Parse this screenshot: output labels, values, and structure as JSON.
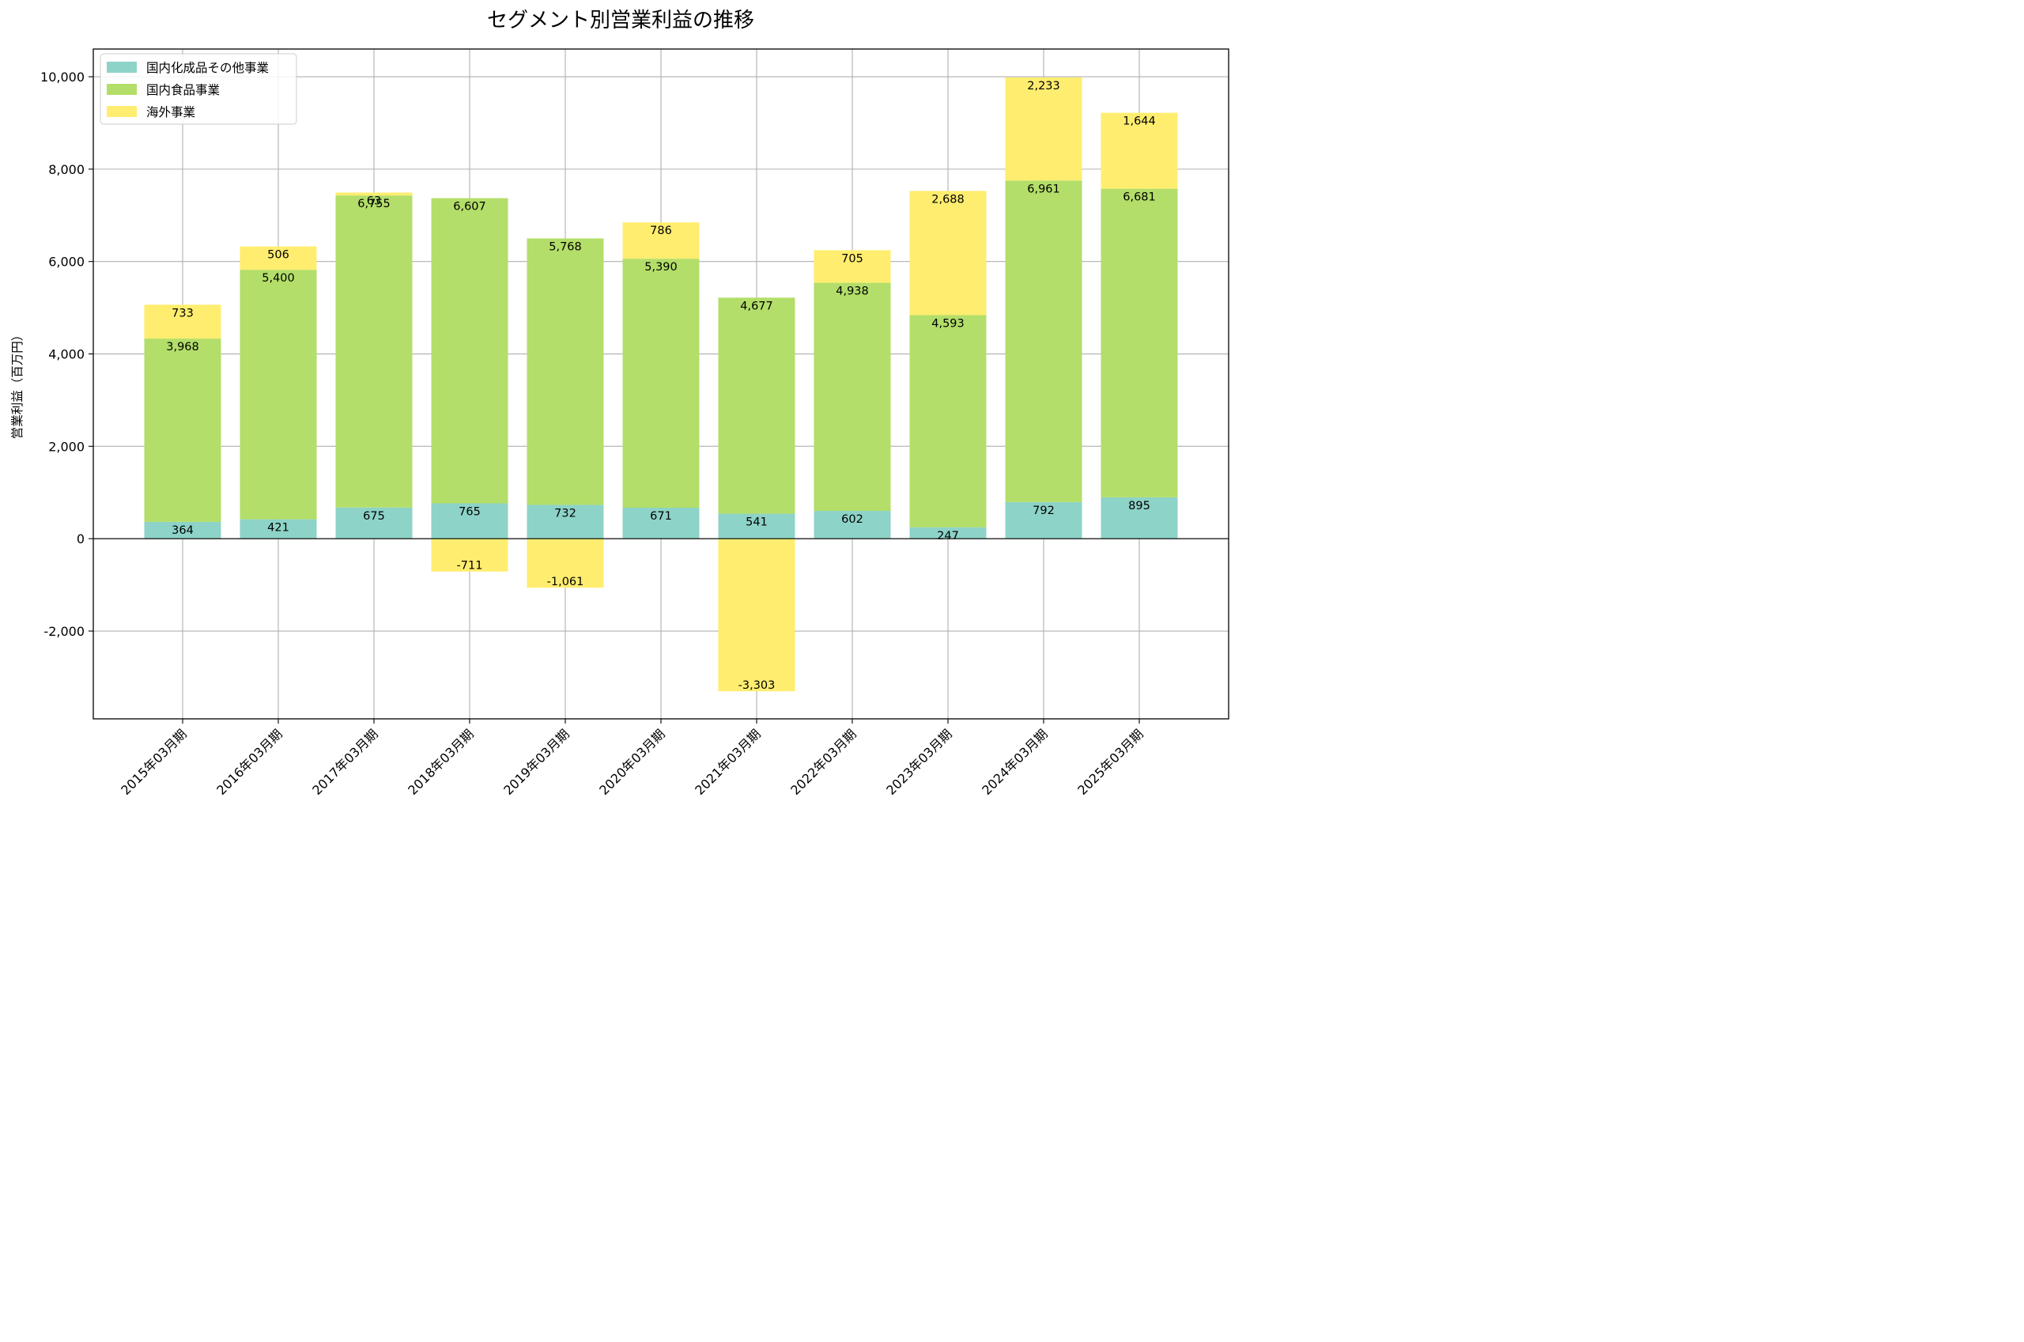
{
  "chart_data": {
    "type": "bar",
    "stacked": true,
    "title": "セグメント別営業利益の推移",
    "xlabel": "",
    "ylabel": "営業利益（百万円）",
    "ylim": [
      -3900,
      10600
    ],
    "yticks": [
      -2000,
      0,
      2000,
      4000,
      6000,
      8000,
      10000
    ],
    "ytick_labels": [
      "-2,000",
      "0",
      "2,000",
      "4,000",
      "6,000",
      "8,000",
      "10,000"
    ],
    "grid": true,
    "legend_position": "top-left",
    "categories": [
      "2015年03月期",
      "2016年03月期",
      "2017年03月期",
      "2018年03月期",
      "2019年03月期",
      "2020年03月期",
      "2021年03月期",
      "2022年03月期",
      "2023年03月期",
      "2024年03月期",
      "2025年03月期"
    ],
    "series": [
      {
        "name": "国内化成品その他事業",
        "color": "#8dd3c7",
        "values": [
          364,
          421,
          675,
          765,
          732,
          671,
          541,
          602,
          247,
          792,
          895
        ],
        "labels": [
          "364",
          "421",
          "675",
          "765",
          "732",
          "671",
          "541",
          "602",
          "247",
          "792",
          "895"
        ]
      },
      {
        "name": "国内食品事業",
        "color": "#b3de69",
        "values": [
          3968,
          5400,
          6755,
          6607,
          5768,
          5390,
          4677,
          4938,
          4593,
          6961,
          6681
        ],
        "labels": [
          "3,968",
          "5,400",
          "6,755",
          "6,607",
          "5,768",
          "5,390",
          "4,677",
          "4,938",
          "4,593",
          "6,961",
          "6,681"
        ]
      },
      {
        "name": "海外事業",
        "color": "#ffed6f",
        "values": [
          733,
          506,
          63,
          -711,
          -1061,
          786,
          -3303,
          705,
          2688,
          2233,
          1644
        ],
        "labels": [
          "733",
          "506",
          "63",
          "-711",
          "-1,061",
          "786",
          "-3,303",
          "705",
          "2,688",
          "2,233",
          "1,644"
        ]
      }
    ]
  }
}
